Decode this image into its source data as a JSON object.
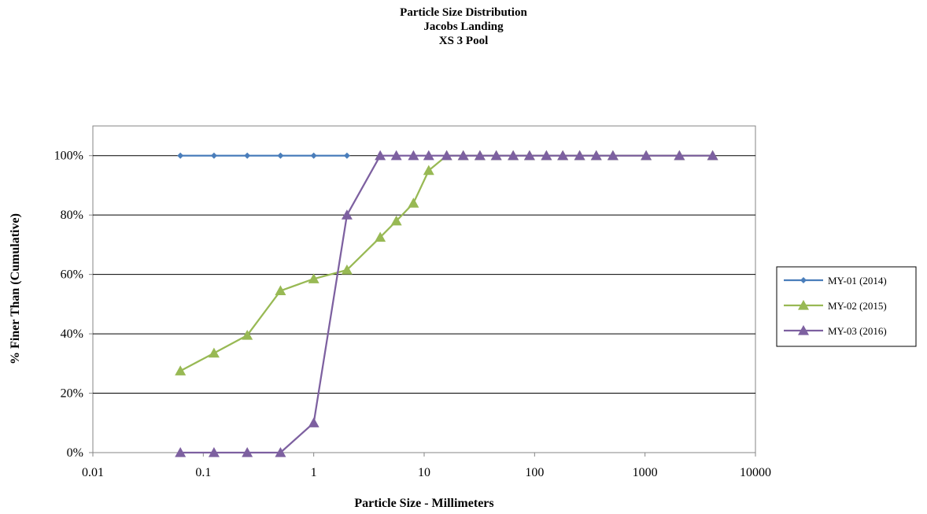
{
  "chart_data": {
    "type": "line",
    "title": [
      "Particle Size Distribution",
      "Jacobs Landing",
      "XS 3 Pool"
    ],
    "xlabel": "Particle Size - Millimeters",
    "ylabel": "% Finer Than (Cumulative)",
    "xscale": "log",
    "xlim": [
      0.01,
      10000
    ],
    "ylim": [
      0,
      110
    ],
    "xticks": [
      "0.01",
      "0.1",
      "1",
      "10",
      "100",
      "1000",
      "10000"
    ],
    "xtick_values": [
      0.01,
      0.1,
      1,
      10,
      100,
      1000,
      10000
    ],
    "yticks": [
      "0%",
      "20%",
      "40%",
      "60%",
      "80%",
      "100%"
    ],
    "ytick_values": [
      0,
      20,
      40,
      60,
      80,
      100
    ],
    "grid": "horizontal",
    "legend_position": "right",
    "series": [
      {
        "name": "MY-01 (2014)",
        "color": "#4a7ebb",
        "marker": "diamond",
        "x": [
          0.062,
          0.125,
          0.25,
          0.5,
          1,
          2
        ],
        "y": [
          100,
          100,
          100,
          100,
          100,
          100
        ]
      },
      {
        "name": "MY-02 (2015)",
        "color": "#98b954",
        "marker": "triangle",
        "x": [
          0.062,
          0.125,
          0.25,
          0.5,
          1,
          2,
          4,
          5.6,
          8,
          11,
          16,
          22.6,
          32,
          45,
          64,
          90,
          128,
          180,
          256,
          362,
          512,
          1024,
          2048,
          4096
        ],
        "y": [
          27.5,
          33.5,
          39.5,
          54.5,
          58.5,
          61.5,
          72.5,
          78,
          84,
          95,
          100,
          100,
          100,
          100,
          100,
          100,
          100,
          100,
          100,
          100,
          100,
          100,
          100,
          100
        ]
      },
      {
        "name": "MY-03 (2016)",
        "color": "#7d60a0",
        "marker": "triangle",
        "x": [
          0.062,
          0.125,
          0.25,
          0.5,
          1,
          2,
          4,
          5.6,
          8,
          11,
          16,
          22.6,
          32,
          45,
          64,
          90,
          128,
          180,
          256,
          362,
          512,
          1024,
          2048,
          4096
        ],
        "y": [
          0,
          0,
          0,
          0,
          10,
          80,
          100,
          100,
          100,
          100,
          100,
          100,
          100,
          100,
          100,
          100,
          100,
          100,
          100,
          100,
          100,
          100,
          100,
          100
        ]
      }
    ]
  }
}
